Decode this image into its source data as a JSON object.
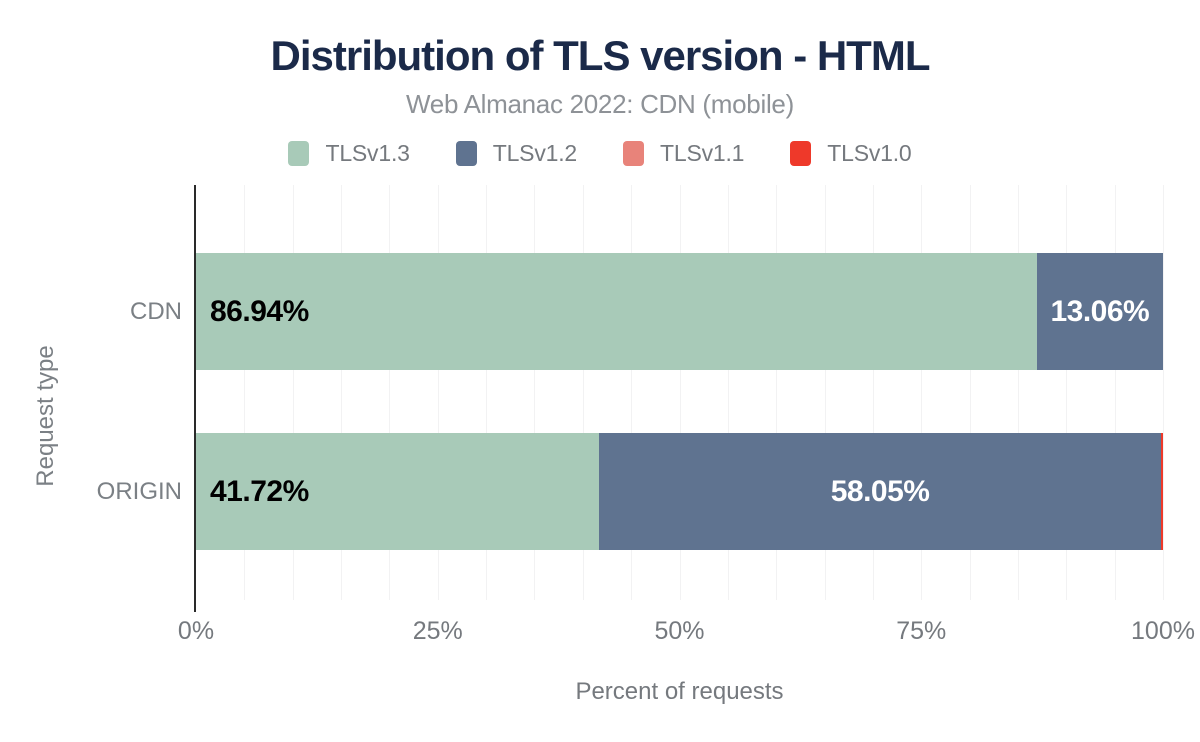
{
  "chart_data": {
    "type": "bar",
    "variant": "horizontal-stacked",
    "title": "Distribution of TLS version - HTML",
    "subtitle": "Web Almanac 2022: CDN (mobile)",
    "categories": [
      "CDN",
      "ORIGIN"
    ],
    "series": [
      {
        "name": "TLSv1.3",
        "color": "#a8cab8",
        "values": [
          86.94,
          41.72
        ]
      },
      {
        "name": "TLSv1.2",
        "color": "#5f7390",
        "values": [
          13.06,
          58.05
        ]
      },
      {
        "name": "TLSv1.1",
        "color": "#e8837a",
        "values": [
          0,
          0
        ]
      },
      {
        "name": "TLSv1.0",
        "color": "#ee392a",
        "values": [
          0,
          0.23
        ]
      }
    ],
    "data_labels": {
      "CDN": [
        "86.94%",
        "13.06%"
      ],
      "ORIGIN": [
        "41.72%",
        "58.05%"
      ]
    },
    "xlabel": "Percent of requests",
    "ylabel": "Request type",
    "x_ticks": [
      "0%",
      "25%",
      "50%",
      "75%",
      "100%"
    ],
    "x_tick_values": [
      0,
      25,
      50,
      75,
      100
    ],
    "xlim": [
      0,
      100
    ],
    "grid": "vertical minor gridlines every 5%",
    "legend_position": "top",
    "label_min_percent_to_show": 5
  },
  "colors": {
    "title": "#1b2a49",
    "subtitle": "#8e9297",
    "axis_text": "#75797e",
    "gridline": "#f2f2f3",
    "axis_line": "#2a2a2a",
    "label_on_light": "#000000",
    "label_on_dark": "#ffffff",
    "background": "#ffffff"
  }
}
